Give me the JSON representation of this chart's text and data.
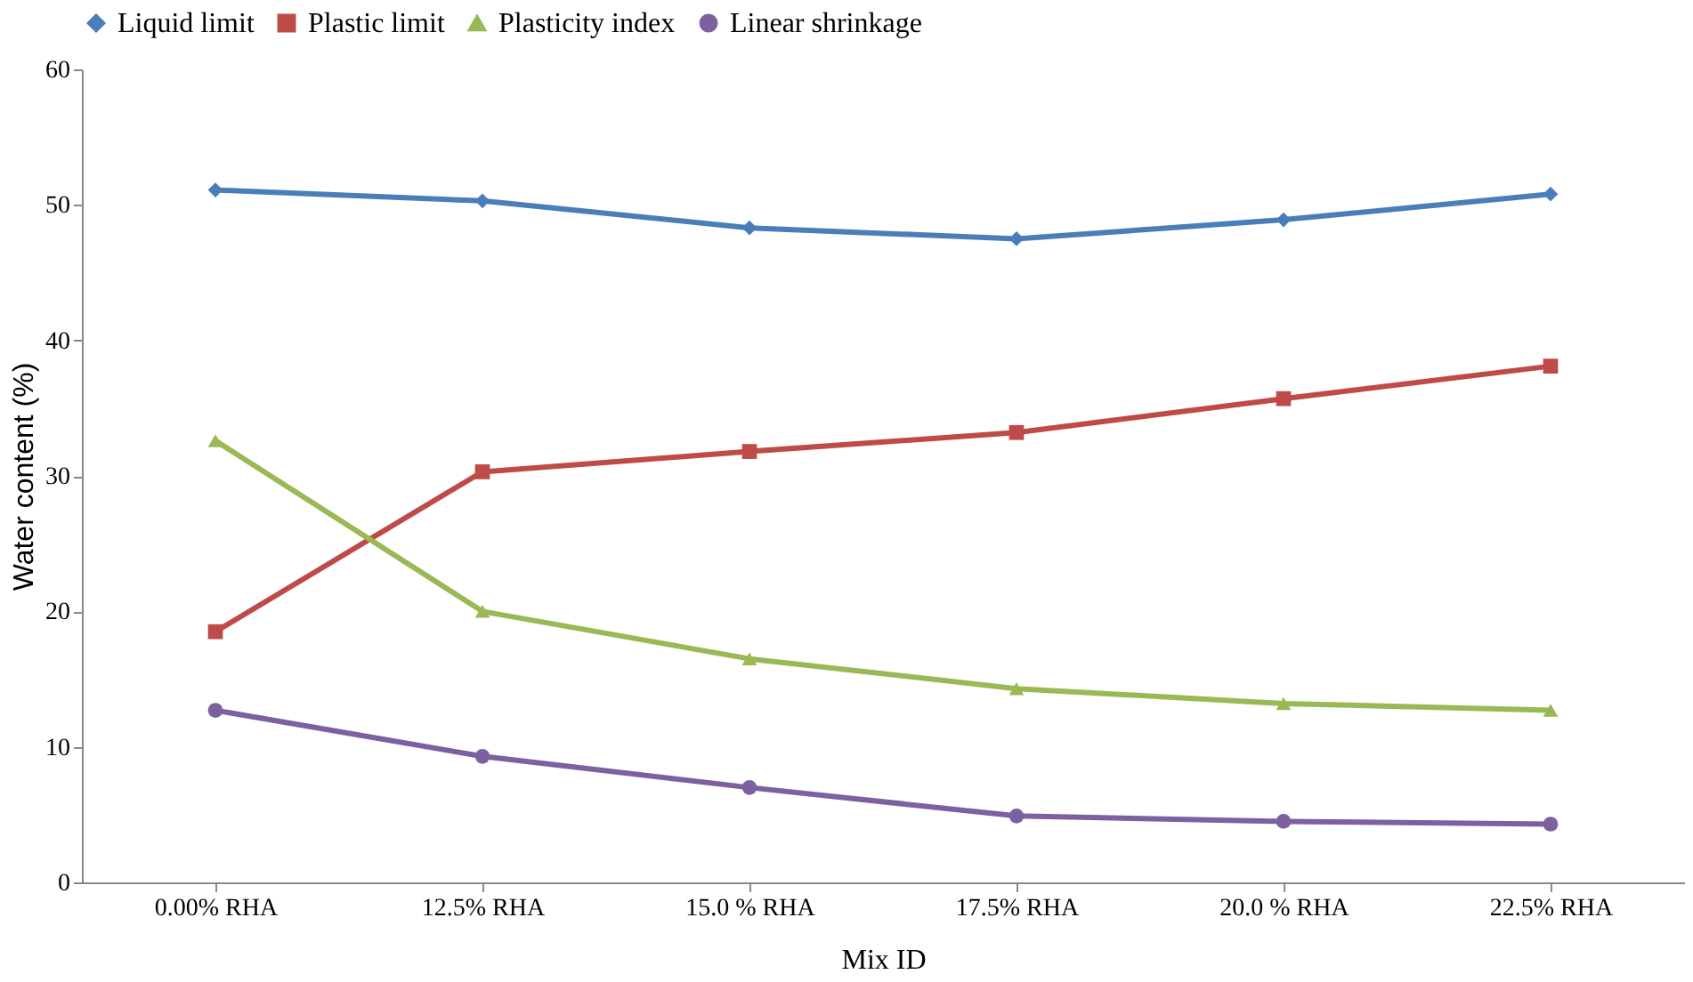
{
  "chart_data": {
    "type": "line",
    "xlabel": "Mix ID",
    "ylabel": "Water content (%)",
    "categories": [
      "0.00% RHA",
      "12.5% RHA",
      "15.0 % RHA",
      "17.5% RHA",
      "20.0 % RHA",
      "22.5% RHA"
    ],
    "series": [
      {
        "name": "Liquid limit",
        "color": "#4a7ebb",
        "marker": "diamond",
        "values": [
          51.1,
          50.3,
          48.3,
          47.5,
          48.9,
          50.8
        ]
      },
      {
        "name": "Plastic limit",
        "color": "#be4b48",
        "marker": "square",
        "values": [
          18.5,
          30.3,
          31.8,
          33.2,
          35.7,
          38.1
        ]
      },
      {
        "name": "Plasticity index",
        "color": "#98b954",
        "marker": "triangle",
        "values": [
          32.6,
          20.0,
          16.5,
          14.3,
          13.2,
          12.7
        ]
      },
      {
        "name": "Linear shrinkage",
        "color": "#7d60a0",
        "marker": "circle",
        "values": [
          12.7,
          9.3,
          7.0,
          4.9,
          4.5,
          4.3
        ]
      }
    ],
    "ylim": [
      0,
      60
    ],
    "yticks": [
      0,
      10,
      20,
      30,
      40,
      50,
      60
    ],
    "grid": false,
    "legend": "top",
    "line_style": "solid"
  }
}
